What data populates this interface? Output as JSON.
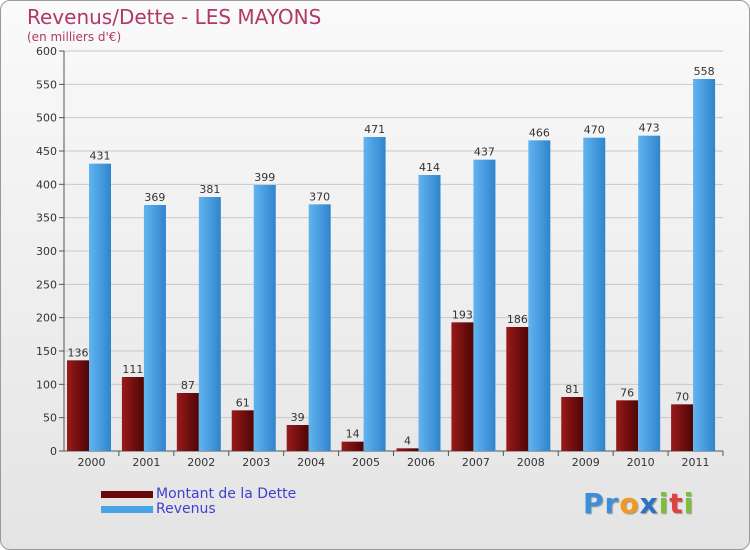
{
  "title": "Revenus/Dette - LES MAYONS",
  "subtitle": "(en milliers d'€)",
  "logo": {
    "parts": [
      {
        "text": "Pr",
        "color": "#3a8fd8"
      },
      {
        "text": "o",
        "color": "#f29a1e"
      },
      {
        "text": "x",
        "color": "#2a73c0"
      },
      {
        "text": "i",
        "color": "#7bbf3a"
      },
      {
        "text": "t",
        "color": "#e04040"
      },
      {
        "text": "i",
        "color": "#7bbf3a"
      }
    ]
  },
  "chart_data": {
    "type": "bar",
    "categories": [
      "2000",
      "2001",
      "2002",
      "2003",
      "2004",
      "2005",
      "2006",
      "2007",
      "2008",
      "2009",
      "2010",
      "2011"
    ],
    "series": [
      {
        "name": "Montant de la Dette",
        "color": "#7a0c0c",
        "values": [
          136,
          111,
          87,
          61,
          39,
          14,
          4,
          193,
          186,
          81,
          76,
          70
        ]
      },
      {
        "name": "Revenus",
        "color": "#4aa3e6",
        "values": [
          431,
          369,
          381,
          399,
          370,
          471,
          414,
          437,
          466,
          470,
          473,
          558
        ]
      }
    ],
    "y_ticks": [
      "0",
      "50",
      "100",
      "150",
      "200",
      "250",
      "300",
      "350",
      "400",
      "450",
      "500",
      "550",
      "600"
    ],
    "ylim": [
      0,
      600
    ],
    "grid": true,
    "legend": "bottom-left"
  }
}
